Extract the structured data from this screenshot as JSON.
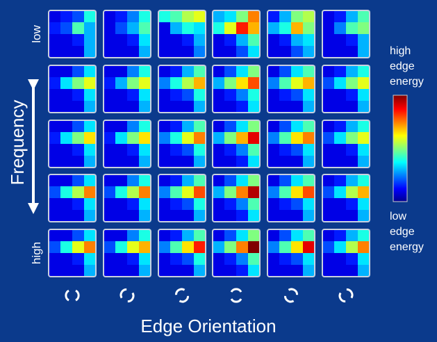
{
  "chart_data": {
    "type": "heatmap-grid",
    "y_label": "Frequency",
    "x_label": "Edge Orientation",
    "row_labels": [
      "low",
      null,
      null,
      null,
      "high"
    ],
    "legend_high": [
      "high",
      "edge",
      "energy"
    ],
    "legend_low": [
      "low",
      "edge",
      "energy"
    ],
    "panels": [
      [
        [
          0.1,
          0.15,
          0.2,
          0.4,
          0.15,
          0.2,
          0.45,
          0.3,
          0.1,
          0.1,
          0.15,
          0.3,
          0.1,
          0.1,
          0.1,
          0.3
        ],
        [
          0.1,
          0.15,
          0.25,
          0.4,
          0.1,
          0.2,
          0.3,
          0.45,
          0.1,
          0.1,
          0.15,
          0.35,
          0.1,
          0.1,
          0.1,
          0.3
        ],
        [
          0.4,
          0.45,
          0.55,
          0.6,
          0.1,
          0.3,
          0.4,
          0.35,
          0.1,
          0.1,
          0.15,
          0.3,
          0.1,
          0.1,
          0.1,
          0.25
        ],
        [
          0.3,
          0.35,
          0.5,
          0.75,
          0.4,
          0.6,
          0.85,
          0.7,
          0.1,
          0.15,
          0.3,
          0.45,
          0.1,
          0.1,
          0.2,
          0.35
        ],
        [
          0.15,
          0.3,
          0.5,
          0.55,
          0.3,
          0.4,
          0.7,
          0.5,
          0.1,
          0.15,
          0.3,
          0.35,
          0.1,
          0.1,
          0.2,
          0.3
        ],
        [
          0.1,
          0.15,
          0.3,
          0.45,
          0.1,
          0.25,
          0.45,
          0.5,
          0.1,
          0.1,
          0.15,
          0.3,
          0.1,
          0.1,
          0.1,
          0.3
        ]
      ],
      [
        [
          0.1,
          0.1,
          0.2,
          0.35,
          0.15,
          0.35,
          0.5,
          0.6,
          0.1,
          0.1,
          0.15,
          0.35,
          0.1,
          0.1,
          0.1,
          0.3
        ],
        [
          0.1,
          0.1,
          0.25,
          0.4,
          0.15,
          0.3,
          0.5,
          0.6,
          0.1,
          0.1,
          0.15,
          0.35,
          0.1,
          0.1,
          0.1,
          0.3
        ],
        [
          0.1,
          0.15,
          0.3,
          0.45,
          0.25,
          0.4,
          0.55,
          0.7,
          0.1,
          0.15,
          0.2,
          0.4,
          0.1,
          0.1,
          0.1,
          0.3
        ],
        [
          0.1,
          0.2,
          0.35,
          0.5,
          0.3,
          0.5,
          0.65,
          0.8,
          0.1,
          0.15,
          0.25,
          0.4,
          0.1,
          0.1,
          0.15,
          0.35
        ],
        [
          0.1,
          0.2,
          0.35,
          0.45,
          0.25,
          0.45,
          0.6,
          0.7,
          0.1,
          0.15,
          0.2,
          0.35,
          0.1,
          0.1,
          0.1,
          0.3
        ],
        [
          0.1,
          0.15,
          0.3,
          0.4,
          0.2,
          0.35,
          0.5,
          0.6,
          0.1,
          0.1,
          0.15,
          0.35,
          0.1,
          0.1,
          0.1,
          0.3
        ]
      ],
      [
        [
          0.1,
          0.1,
          0.2,
          0.35,
          0.15,
          0.35,
          0.5,
          0.65,
          0.1,
          0.1,
          0.15,
          0.35,
          0.1,
          0.1,
          0.1,
          0.3
        ],
        [
          0.1,
          0.1,
          0.25,
          0.4,
          0.15,
          0.35,
          0.5,
          0.65,
          0.1,
          0.1,
          0.15,
          0.35,
          0.1,
          0.1,
          0.1,
          0.3
        ],
        [
          0.1,
          0.15,
          0.3,
          0.45,
          0.25,
          0.4,
          0.6,
          0.75,
          0.1,
          0.15,
          0.2,
          0.4,
          0.1,
          0.1,
          0.1,
          0.3
        ],
        [
          0.1,
          0.2,
          0.35,
          0.5,
          0.3,
          0.5,
          0.7,
          0.9,
          0.1,
          0.15,
          0.25,
          0.45,
          0.1,
          0.1,
          0.15,
          0.35
        ],
        [
          0.1,
          0.2,
          0.35,
          0.45,
          0.25,
          0.45,
          0.65,
          0.75,
          0.1,
          0.15,
          0.2,
          0.35,
          0.1,
          0.1,
          0.1,
          0.3
        ],
        [
          0.1,
          0.15,
          0.3,
          0.4,
          0.2,
          0.35,
          0.5,
          0.6,
          0.1,
          0.1,
          0.15,
          0.35,
          0.1,
          0.1,
          0.1,
          0.3
        ]
      ],
      [
        [
          0.1,
          0.1,
          0.2,
          0.35,
          0.2,
          0.4,
          0.55,
          0.75,
          0.1,
          0.1,
          0.15,
          0.35,
          0.1,
          0.1,
          0.1,
          0.3
        ],
        [
          0.1,
          0.1,
          0.25,
          0.4,
          0.2,
          0.4,
          0.55,
          0.75,
          0.1,
          0.1,
          0.15,
          0.35,
          0.1,
          0.1,
          0.1,
          0.3
        ],
        [
          0.1,
          0.15,
          0.3,
          0.45,
          0.25,
          0.45,
          0.6,
          0.8,
          0.1,
          0.15,
          0.2,
          0.4,
          0.1,
          0.1,
          0.1,
          0.3
        ],
        [
          0.1,
          0.2,
          0.35,
          0.5,
          0.3,
          0.5,
          0.75,
          0.95,
          0.1,
          0.15,
          0.25,
          0.45,
          0.1,
          0.1,
          0.15,
          0.35
        ],
        [
          0.1,
          0.2,
          0.35,
          0.45,
          0.25,
          0.45,
          0.65,
          0.8,
          0.1,
          0.15,
          0.2,
          0.35,
          0.1,
          0.1,
          0.1,
          0.3
        ],
        [
          0.1,
          0.15,
          0.3,
          0.4,
          0.2,
          0.35,
          0.55,
          0.7,
          0.1,
          0.1,
          0.15,
          0.35,
          0.1,
          0.1,
          0.1,
          0.3
        ]
      ],
      [
        [
          0.1,
          0.1,
          0.2,
          0.35,
          0.2,
          0.4,
          0.6,
          0.75,
          0.1,
          0.1,
          0.15,
          0.35,
          0.1,
          0.1,
          0.1,
          0.3
        ],
        [
          0.1,
          0.1,
          0.25,
          0.4,
          0.2,
          0.4,
          0.6,
          0.7,
          0.1,
          0.1,
          0.15,
          0.35,
          0.1,
          0.1,
          0.1,
          0.3
        ],
        [
          0.1,
          0.15,
          0.3,
          0.45,
          0.25,
          0.45,
          0.65,
          0.85,
          0.1,
          0.15,
          0.2,
          0.4,
          0.1,
          0.1,
          0.1,
          0.3
        ],
        [
          0.1,
          0.2,
          0.35,
          0.5,
          0.3,
          0.5,
          0.75,
          1.0,
          0.1,
          0.15,
          0.25,
          0.45,
          0.1,
          0.1,
          0.15,
          0.35
        ],
        [
          0.1,
          0.2,
          0.35,
          0.45,
          0.25,
          0.45,
          0.65,
          0.9,
          0.1,
          0.15,
          0.2,
          0.35,
          0.1,
          0.1,
          0.1,
          0.3
        ],
        [
          0.1,
          0.15,
          0.3,
          0.4,
          0.2,
          0.35,
          0.55,
          0.75,
          0.1,
          0.1,
          0.15,
          0.35,
          0.1,
          0.1,
          0.1,
          0.3
        ]
      ]
    ]
  }
}
